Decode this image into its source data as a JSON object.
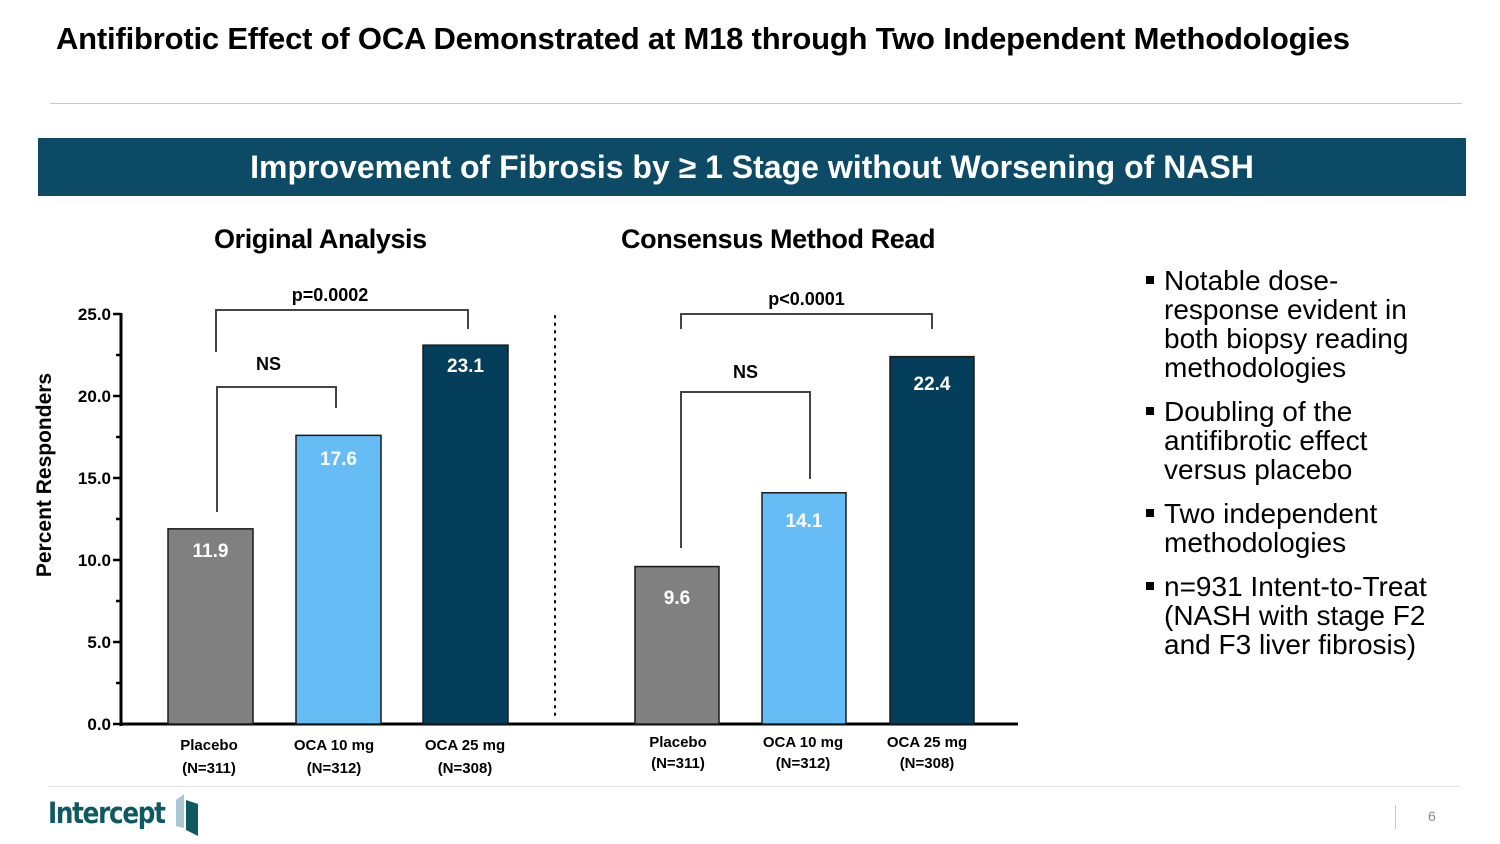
{
  "slide": {
    "title": "Antifibrotic Effect of OCA Demonstrated at M18 through Two Independent Methodologies",
    "banner": "Improvement of Fibrosis by ≥ 1 Stage without Worsening of NASH",
    "page_number": "6",
    "logo_text": "Intercept",
    "colors": {
      "banner": "#0c4a66",
      "placebo": "#808080",
      "oca10": "#66bdf5",
      "oca25": "#053e5b"
    }
  },
  "bullets": [
    "Notable dose-response evident in both biopsy reading methodologies",
    "Doubling of the antifibrotic effect versus placebo",
    "Two independent methodologies",
    "n=931 Intent-to-Treat (NASH with stage F2 and F3 liver fibrosis)"
  ],
  "chart_data": [
    {
      "type": "bar",
      "title": "Original Analysis",
      "ylabel": "Percent Responders",
      "xlabel": "",
      "ylim": [
        0,
        25
      ],
      "yticks": [
        "0.0",
        "5.0",
        "10.0",
        "15.0",
        "20.0",
        "25.0"
      ],
      "categories": [
        "Placebo",
        "OCA 10 mg",
        "OCA 25 mg"
      ],
      "category_n": [
        "(N=311)",
        "(N=312)",
        "(N=308)"
      ],
      "values": [
        11.9,
        17.6,
        23.1
      ],
      "value_labels": [
        "11.9",
        "17.6",
        "23.1"
      ],
      "annotations": [
        {
          "from": "Placebo",
          "to": "OCA 25 mg",
          "label": "p=0.0002"
        },
        {
          "from": "Placebo",
          "to": "OCA 10 mg",
          "label": "NS"
        }
      ],
      "grid": false
    },
    {
      "type": "bar",
      "title": "Consensus Method Read",
      "ylim": [
        0,
        25
      ],
      "categories": [
        "Placebo",
        "OCA 10 mg",
        "OCA 25 mg"
      ],
      "category_n": [
        "(N=311)",
        "(N=312)",
        "(N=308)"
      ],
      "values": [
        9.6,
        14.1,
        22.4
      ],
      "value_labels": [
        "9.6",
        "14.1",
        "22.4"
      ],
      "annotations": [
        {
          "from": "Placebo",
          "to": "OCA 25 mg",
          "label": "p<0.0001"
        },
        {
          "from": "Placebo",
          "to": "OCA 10 mg",
          "label": "NS"
        }
      ],
      "grid": false
    }
  ]
}
